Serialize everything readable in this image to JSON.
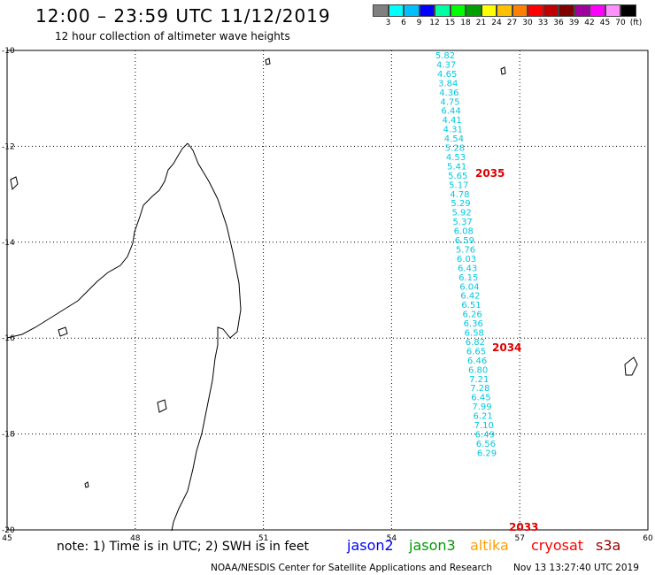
{
  "header": {
    "title": "12:00 – 23:59 UTC 11/12/2019",
    "subtitle": "12 hour collection of altimeter wave heights"
  },
  "color_scale": {
    "colors": [
      "#808080",
      "#00ffff",
      "#00c0ff",
      "#0000ff",
      "#00ffa0",
      "#00ff00",
      "#00a000",
      "#ffff00",
      "#ffc000",
      "#ff8000",
      "#ff0000",
      "#c00000",
      "#800000",
      "#a000a0",
      "#ff00ff",
      "#ff90ff",
      "#000000"
    ],
    "labels": [
      "3",
      "6",
      "9",
      "12",
      "15",
      "18",
      "21",
      "24",
      "27",
      "30",
      "33",
      "36",
      "39",
      "42",
      "45",
      "70",
      "(ft)"
    ]
  },
  "map": {
    "lon_ticks": [
      "45",
      "48",
      "51",
      "54",
      "57",
      "60"
    ],
    "lat_ticks": [
      "-10",
      "-12",
      "-14",
      "-16",
      "-18",
      "-20"
    ],
    "lon_range": [
      45,
      60
    ],
    "lat_range": [
      -20,
      -10
    ],
    "grid": true,
    "wave_heights_ft": [
      "5.82",
      "4.37",
      "4.65",
      "3.84",
      "4.36",
      "4.75",
      "6.44",
      "4.41",
      "4.31",
      "4.54",
      "5.28",
      "4.53",
      "5.41",
      "5.65",
      "5.17",
      "4.78",
      "5.29",
      "5.92",
      "5.37",
      "6.08",
      "6.59",
      "5.76",
      "6.03",
      "6.43",
      "6.15",
      "6.04",
      "6.42",
      "6.51",
      "6.26",
      "6.36",
      "6.58",
      "6.82",
      "6.65",
      "6.46",
      "6.80",
      "7.21",
      "7.28",
      "6.45",
      "7.99",
      "6.21",
      "7.10",
      "6.49",
      "6.56",
      "6.29"
    ],
    "track_color": "#00c8e0",
    "time_labels": [
      "2035",
      "2034",
      "2033"
    ],
    "time_label_color": "#dd0000"
  },
  "footer": {
    "note": "note: 1) Time is in UTC; 2) SWH is in feet",
    "satellites": [
      {
        "name": "jason2",
        "color": "#0000ff"
      },
      {
        "name": "jason3",
        "color": "#009900"
      },
      {
        "name": "altika",
        "color": "#ffa000"
      },
      {
        "name": "cryosat",
        "color": "#ff0000"
      },
      {
        "name": "s3a",
        "color": "#990000"
      }
    ],
    "credit": "NOAA/NESDIS Center for Satellite Applications and Research",
    "timestamp": "Nov 13 13:27:40 UTC 2019"
  }
}
